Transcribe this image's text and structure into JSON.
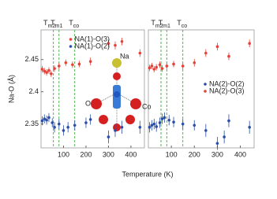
{
  "chart_data": [
    {
      "type": "scatter",
      "ylabel": "Na-O (Å)",
      "xlabel": "Temperature (K)",
      "xlim": [
        0,
        460
      ],
      "ylim": [
        2.313,
        2.496
      ],
      "xticks": [
        100,
        200,
        300,
        400
      ],
      "yticks": [
        2.35,
        2.4,
        2.45
      ],
      "legend": "upper center",
      "annotations": [
        {
          "label": "Tm2",
          "x": 55
        },
        {
          "label": "Tm1",
          "x": 80
        },
        {
          "label": "Tco",
          "x": 150
        }
      ],
      "inset_labels": [
        "Na",
        "O",
        "Co"
      ],
      "series": [
        {
          "name": "NA(1)-O(3)",
          "color": "#e8413a",
          "x": [
            5,
            15,
            25,
            35,
            45,
            60,
            80,
            110,
            140,
            170,
            220,
            300,
            330,
            360,
            440
          ],
          "values": [
            2.435,
            2.432,
            2.43,
            2.433,
            2.428,
            2.436,
            2.44,
            2.445,
            2.442,
            2.443,
            2.447,
            2.475,
            2.472,
            2.478,
            2.46
          ],
          "errors": [
            0.005,
            0.005,
            0.005,
            0.005,
            0.005,
            0.005,
            0.005,
            0.005,
            0.005,
            0.005,
            0.006,
            0.006,
            0.006,
            0.006,
            0.006
          ]
        },
        {
          "name": "NA(1)-O(2)",
          "color": "#2b4fa8",
          "x": [
            5,
            15,
            25,
            35,
            50,
            60,
            80,
            100,
            120,
            150,
            200,
            220,
            300,
            330,
            360,
            440
          ],
          "values": [
            2.355,
            2.358,
            2.356,
            2.36,
            2.352,
            2.345,
            2.35,
            2.34,
            2.345,
            2.348,
            2.352,
            2.357,
            2.33,
            2.34,
            2.345,
            2.345
          ],
          "errors": [
            0.007,
            0.007,
            0.007,
            0.007,
            0.007,
            0.008,
            0.008,
            0.008,
            0.008,
            0.008,
            0.008,
            0.008,
            0.01,
            0.01,
            0.01,
            0.01
          ]
        }
      ]
    },
    {
      "type": "scatter",
      "xlim": [
        0,
        460
      ],
      "ylim": [
        2.313,
        2.496
      ],
      "xticks": [
        100,
        200,
        300,
        400
      ],
      "legend": "center right",
      "annotations": [
        {
          "label": "Tm2",
          "x": 55
        },
        {
          "label": "Tm1",
          "x": 80
        },
        {
          "label": "Tco",
          "x": 150
        }
      ],
      "series": [
        {
          "name": "NA(2)-O(2)",
          "color": "#2b4fa8",
          "x": [
            5,
            15,
            25,
            35,
            50,
            60,
            70,
            90,
            110,
            150,
            200,
            250,
            300,
            330,
            350,
            440
          ],
          "values": [
            2.345,
            2.348,
            2.35,
            2.346,
            2.352,
            2.358,
            2.36,
            2.356,
            2.353,
            2.35,
            2.348,
            2.34,
            2.32,
            2.33,
            2.355,
            2.345
          ],
          "errors": [
            0.008,
            0.008,
            0.008,
            0.008,
            0.008,
            0.008,
            0.008,
            0.008,
            0.008,
            0.008,
            0.008,
            0.01,
            0.01,
            0.01,
            0.01,
            0.01
          ]
        },
        {
          "name": "NA(2)-O(3)",
          "color": "#e8413a",
          "x": [
            5,
            15,
            25,
            35,
            50,
            60,
            80,
            110,
            150,
            200,
            250,
            300,
            350,
            440
          ],
          "values": [
            2.437,
            2.44,
            2.435,
            2.438,
            2.442,
            2.436,
            2.44,
            2.443,
            2.44,
            2.445,
            2.46,
            2.47,
            2.455,
            2.475
          ],
          "errors": [
            0.005,
            0.005,
            0.005,
            0.005,
            0.005,
            0.005,
            0.005,
            0.005,
            0.005,
            0.006,
            0.006,
            0.006,
            0.006,
            0.006
          ]
        }
      ]
    }
  ]
}
